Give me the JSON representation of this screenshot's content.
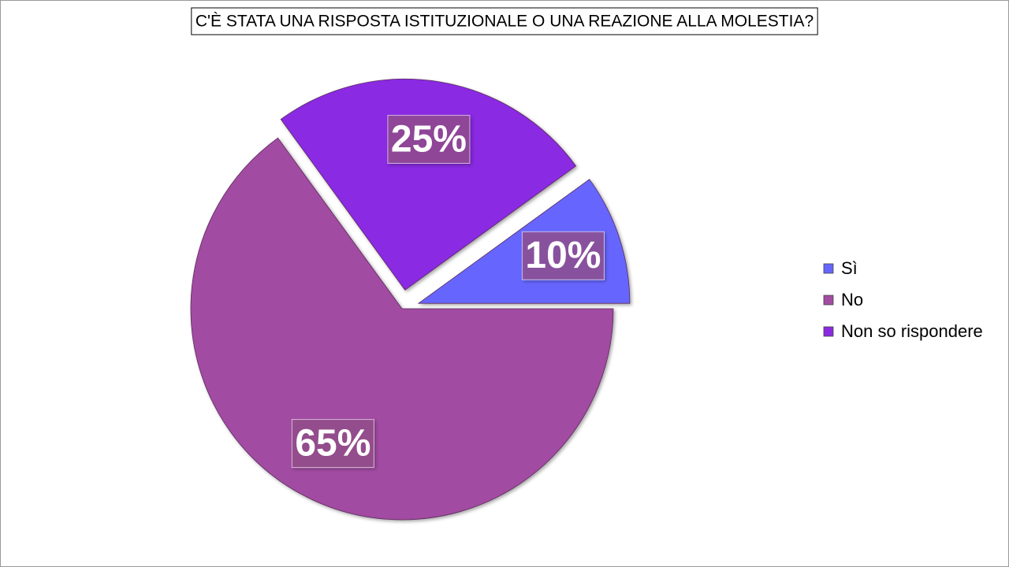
{
  "chart_data": {
    "type": "pie",
    "title": "C'È STATA UNA RISPOSTA ISTITUZIONALE O UNA REAZIONE ALLA MOLESTIA?",
    "categories": [
      "Sì",
      "No",
      "Non so rispondere"
    ],
    "values": [
      10,
      65,
      25
    ],
    "value_labels": [
      "10%",
      "65%",
      "25%"
    ],
    "colors": [
      "#6666ff",
      "#a24ca2",
      "#8a2be2"
    ],
    "legend": "right"
  }
}
